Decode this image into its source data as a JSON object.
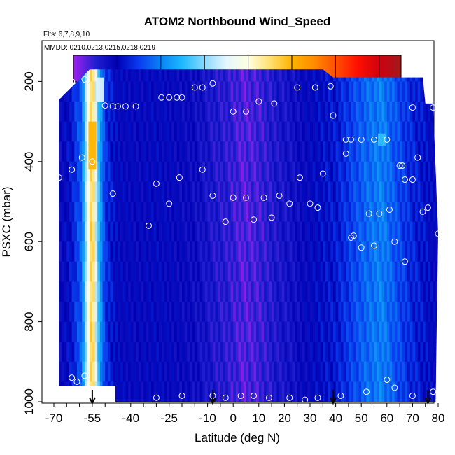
{
  "chart_data": {
    "type": "heatmap",
    "title": "ATOM2 Northbound Wind_Speed",
    "subtitle_flights": "Flts: 6,7,8,9,10",
    "subtitle_dates": "MMDD: 0210,0213,0215,0218,0219",
    "xlabel": "Latitude (deg N)",
    "ylabel": "PSXC (mbar)",
    "xlim": [
      -70,
      83
    ],
    "ylim": [
      1000,
      0
    ],
    "x_ticks": [
      -70,
      -55,
      -40,
      -25,
      -10,
      0,
      10,
      20,
      30,
      40,
      50,
      60,
      70,
      80
    ],
    "y_ticks": [
      200,
      400,
      600,
      800,
      1000
    ],
    "colorbar": {
      "ticks": [
        10,
        20,
        30,
        40,
        50,
        60,
        70
      ],
      "range": [
        0,
        75
      ],
      "color_stops": [
        {
          "v": 0,
          "c": "#a020f0"
        },
        {
          "v": 5,
          "c": "#2020d0"
        },
        {
          "v": 10,
          "c": "#0000b4"
        },
        {
          "v": 15,
          "c": "#0a3cf0"
        },
        {
          "v": 20,
          "c": "#0a82f5"
        },
        {
          "v": 25,
          "c": "#1ebaff"
        },
        {
          "v": 30,
          "c": "#8ad8ff"
        },
        {
          "v": 35,
          "c": "#e4f6ff"
        },
        {
          "v": 40,
          "c": "#ffffe0"
        },
        {
          "v": 45,
          "c": "#ffe070"
        },
        {
          "v": 50,
          "c": "#ffb400"
        },
        {
          "v": 55,
          "c": "#ff8c00"
        },
        {
          "v": 60,
          "c": "#ff5000"
        },
        {
          "v": 65,
          "c": "#ff1000"
        },
        {
          "v": 70,
          "c": "#d00010"
        },
        {
          "v": 75,
          "c": "#a01a1a"
        }
      ]
    },
    "boundaries": [
      {
        "lat": -68,
        "p": 245
      },
      {
        "lat": -56,
        "p": 170
      },
      {
        "lat": 35,
        "p": 170
      },
      {
        "lat": 39,
        "p": 190
      },
      {
        "lat": 74,
        "p": 190
      },
      {
        "lat": 75,
        "p": 255
      },
      {
        "lat": 78,
        "p": 255
      },
      {
        "lat": 80,
        "p": 580
      },
      {
        "lat": 79,
        "p": 1000
      },
      {
        "lat": -46,
        "p": 1000
      },
      {
        "lat": -46,
        "p": 960
      },
      {
        "lat": -68,
        "p": 960
      }
    ],
    "columns": [
      {
        "lat": -68,
        "v": 8
      },
      {
        "lat": -63,
        "v": 12
      },
      {
        "lat": -59,
        "v": 18
      },
      {
        "lat": -57,
        "v": 35
      },
      {
        "lat": -55,
        "v": 50
      },
      {
        "lat": -53,
        "v": 28
      },
      {
        "lat": -50,
        "v": 14
      },
      {
        "lat": -45,
        "v": 10
      },
      {
        "lat": -38,
        "v": 9
      },
      {
        "lat": -30,
        "v": 10
      },
      {
        "lat": -22,
        "v": 9
      },
      {
        "lat": -15,
        "v": 8
      },
      {
        "lat": -8,
        "v": 6
      },
      {
        "lat": -2,
        "v": 5
      },
      {
        "lat": 4,
        "v": 3
      },
      {
        "lat": 10,
        "v": 4
      },
      {
        "lat": 16,
        "v": 6
      },
      {
        "lat": 22,
        "v": 7
      },
      {
        "lat": 28,
        "v": 9
      },
      {
        "lat": 34,
        "v": 11
      },
      {
        "lat": 40,
        "v": 12
      },
      {
        "lat": 46,
        "v": 15
      },
      {
        "lat": 52,
        "v": 18
      },
      {
        "lat": 58,
        "v": 20
      },
      {
        "lat": 64,
        "v": 16
      },
      {
        "lat": 70,
        "v": 13
      },
      {
        "lat": 76,
        "v": 11
      },
      {
        "lat": 80,
        "v": 9
      }
    ],
    "highlights": [
      {
        "lat": -55,
        "p1": 300,
        "p2": 420,
        "v": 50
      },
      {
        "lat": -52,
        "p1": 190,
        "p2": 250,
        "v": 35
      },
      {
        "lat": 58,
        "p1": 330,
        "p2": 360,
        "v": 26
      }
    ],
    "flight_path_points": [
      {
        "lat": -68,
        "p": 235
      },
      {
        "lat": -66,
        "p": 215
      },
      {
        "lat": -63,
        "p": 200
      },
      {
        "lat": -58,
        "p": 195
      },
      {
        "lat": -50,
        "p": 260
      },
      {
        "lat": -47,
        "p": 262
      },
      {
        "lat": -45,
        "p": 262
      },
      {
        "lat": -42,
        "p": 262
      },
      {
        "lat": -38,
        "p": 262
      },
      {
        "lat": -28,
        "p": 240
      },
      {
        "lat": -25,
        "p": 240
      },
      {
        "lat": -22,
        "p": 240
      },
      {
        "lat": -20,
        "p": 240
      },
      {
        "lat": -15,
        "p": 215
      },
      {
        "lat": -12,
        "p": 215
      },
      {
        "lat": -8,
        "p": 205
      },
      {
        "lat": 0,
        "p": 275
      },
      {
        "lat": 5,
        "p": 275
      },
      {
        "lat": 10,
        "p": 250
      },
      {
        "lat": 16,
        "p": 255
      },
      {
        "lat": 25,
        "p": 215
      },
      {
        "lat": 32,
        "p": 215
      },
      {
        "lat": 38,
        "p": 212
      },
      {
        "lat": 39,
        "p": 285
      },
      {
        "lat": 44,
        "p": 345
      },
      {
        "lat": 46,
        "p": 345
      },
      {
        "lat": 50,
        "p": 345
      },
      {
        "lat": 55,
        "p": 345
      },
      {
        "lat": 60,
        "p": 345
      },
      {
        "lat": 70,
        "p": 265
      },
      {
        "lat": 78,
        "p": 265
      },
      {
        "lat": 80,
        "p": 285
      },
      {
        "lat": -68,
        "p": 440
      },
      {
        "lat": -63,
        "p": 420
      },
      {
        "lat": -59,
        "p": 390
      },
      {
        "lat": -55,
        "p": 400
      },
      {
        "lat": -47,
        "p": 480
      },
      {
        "lat": -33,
        "p": 560
      },
      {
        "lat": -30,
        "p": 455
      },
      {
        "lat": -25,
        "p": 505
      },
      {
        "lat": -21,
        "p": 440
      },
      {
        "lat": -12,
        "p": 420
      },
      {
        "lat": -8,
        "p": 485
      },
      {
        "lat": -3,
        "p": 550
      },
      {
        "lat": 0,
        "p": 490
      },
      {
        "lat": 5,
        "p": 490
      },
      {
        "lat": 8,
        "p": 545
      },
      {
        "lat": 12,
        "p": 490
      },
      {
        "lat": 15,
        "p": 540
      },
      {
        "lat": 18,
        "p": 485
      },
      {
        "lat": 22,
        "p": 505
      },
      {
        "lat": 26,
        "p": 440
      },
      {
        "lat": 30,
        "p": 505
      },
      {
        "lat": 33,
        "p": 515
      },
      {
        "lat": 35,
        "p": 430
      },
      {
        "lat": 44,
        "p": 380
      },
      {
        "lat": 46,
        "p": 590
      },
      {
        "lat": 47,
        "p": 585
      },
      {
        "lat": 50,
        "p": 615
      },
      {
        "lat": 53,
        "p": 530
      },
      {
        "lat": 55,
        "p": 610
      },
      {
        "lat": 57,
        "p": 530
      },
      {
        "lat": 61,
        "p": 520
      },
      {
        "lat": 63,
        "p": 600
      },
      {
        "lat": 65,
        "p": 410
      },
      {
        "lat": 66,
        "p": 410
      },
      {
        "lat": 67,
        "p": 445
      },
      {
        "lat": 67,
        "p": 650
      },
      {
        "lat": 70,
        "p": 445
      },
      {
        "lat": 72,
        "p": 390
      },
      {
        "lat": 74,
        "p": 525
      },
      {
        "lat": 76,
        "p": 515
      },
      {
        "lat": 80,
        "p": 580
      },
      {
        "lat": -63,
        "p": 940
      },
      {
        "lat": -61,
        "p": 950
      },
      {
        "lat": -58,
        "p": 935
      },
      {
        "lat": -50,
        "p": 995
      },
      {
        "lat": -30,
        "p": 990
      },
      {
        "lat": -20,
        "p": 985
      },
      {
        "lat": -8,
        "p": 985
      },
      {
        "lat": -3,
        "p": 990
      },
      {
        "lat": 3,
        "p": 985
      },
      {
        "lat": 8,
        "p": 985
      },
      {
        "lat": 14,
        "p": 990
      },
      {
        "lat": 22,
        "p": 990
      },
      {
        "lat": 28,
        "p": 995
      },
      {
        "lat": 33,
        "p": 990
      },
      {
        "lat": 42,
        "p": 985
      },
      {
        "lat": 52,
        "p": 975
      },
      {
        "lat": 60,
        "p": 945
      },
      {
        "lat": 63,
        "p": 965
      },
      {
        "lat": 70,
        "p": 985
      },
      {
        "lat": 78,
        "p": 975
      }
    ],
    "arrows_lat": [
      -55,
      -8,
      39,
      76
    ]
  }
}
